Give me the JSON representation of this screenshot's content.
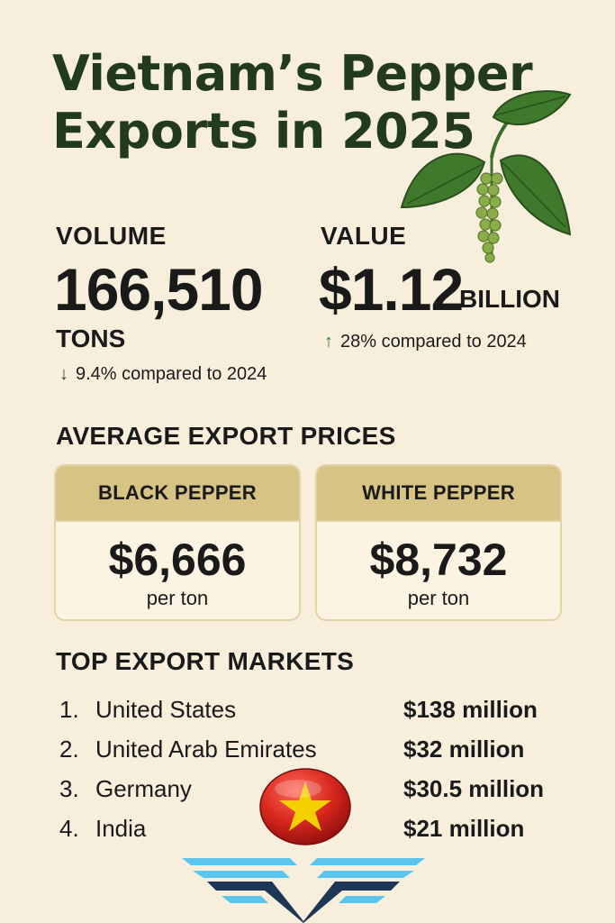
{
  "header": {
    "title_line1": "Vietnam’s Pepper",
    "title_line2": "Exports in 2025"
  },
  "volume": {
    "label": "VOLUME",
    "value": "166,510",
    "unit": "TONS",
    "change": "9.4% compared to 2024",
    "direction": "down"
  },
  "value": {
    "label": "VALUE",
    "amount": "$1.12",
    "unit": "BILLION",
    "change": "28% compared to 2024",
    "direction": "up"
  },
  "prices": {
    "title": "AVERAGE EXPORT PRICES",
    "black": {
      "label": "BLACK PEPPER",
      "price": "$6,666",
      "unit": "per ton"
    },
    "white": {
      "label": "WHITE PEPPER",
      "price": "$8,732",
      "unit": "per ton"
    }
  },
  "markets": {
    "title": "TOP EXPORT MARKETS",
    "items": [
      {
        "rank": "1.",
        "name": "United States",
        "value": "$138 million"
      },
      {
        "rank": "2.",
        "name": "United Arab Emirates",
        "value": "$32 million"
      },
      {
        "rank": "3.",
        "name": "Germany",
        "value": "$30.5 million"
      },
      {
        "rank": "4.",
        "name": "India",
        "value": "$21 million"
      }
    ]
  },
  "icons": {
    "plant": "pepper-plant-icon",
    "flag": "vietnam-flag-icon",
    "logo": "wings-logo-icon",
    "down": "arrow-down-icon",
    "up": "arrow-up-icon"
  },
  "colors": {
    "background": "#f7efdc",
    "title": "#223a1f",
    "card_header": "#d7c383",
    "flag_red": "#d7261e",
    "flag_star": "#f5d000",
    "logo_navy": "#1e3756",
    "logo_sky": "#5cc5ee"
  }
}
